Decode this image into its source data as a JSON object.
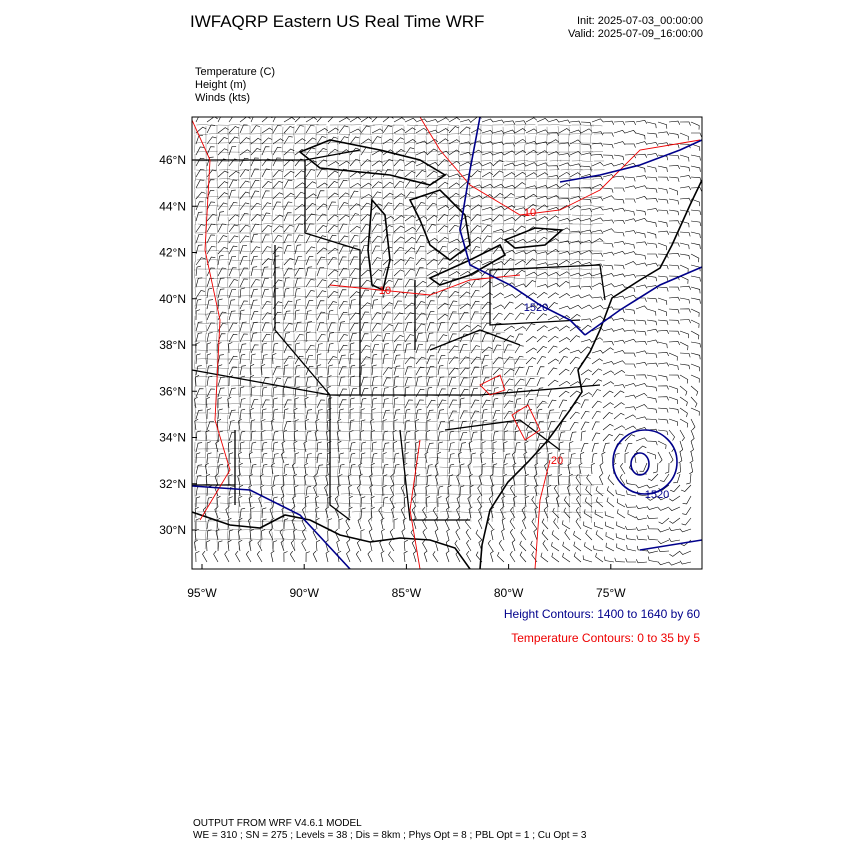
{
  "header": {
    "title": "IWFAQRP Eastern US Real Time WRF",
    "init": "Init: 2025-07-03_00:00:00",
    "valid": "Valid: 2025-07-09_16:00:00"
  },
  "fields": [
    "Temperature   (C)",
    "Height   (m)",
    "Winds   (kts)"
  ],
  "map": {
    "lat_labels": [
      "46°N",
      "44°N",
      "42°N",
      "40°N",
      "38°N",
      "36°N",
      "34°N",
      "32°N",
      "30°N"
    ],
    "lon_labels": [
      "95°W",
      "90°W",
      "85°W",
      "80°W",
      "75°W"
    ],
    "height_contour_labels": [
      "1520",
      "1520"
    ],
    "temperature_contour_labels": [
      "20",
      "10",
      "10"
    ]
  },
  "legend": {
    "height": "Height Contours: 1400 to 1640 by 60",
    "temperature": "Temperature Contours: 0 to 35 by 5"
  },
  "footer": {
    "line1": "OUTPUT FROM WRF V4.6.1 MODEL",
    "line2": "WE = 310 ; SN = 275 ; Levels = 38 ; Dis = 8km ; Phys Opt = 8 ; PBL Opt = 1 ; Cu Opt = 3"
  }
}
